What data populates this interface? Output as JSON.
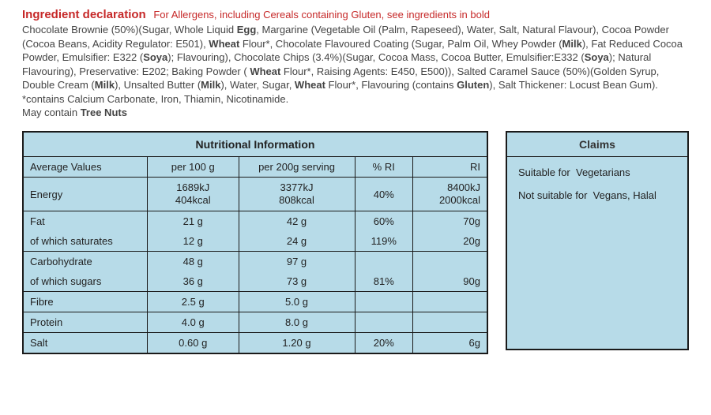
{
  "ingredient": {
    "title": "Ingredient declaration",
    "allergen_note": "For Allergens, including Cereals containing Gluten, see ingredients in bold",
    "body_html": "Chocolate Brownie (50%)(Sugar, Whole Liquid <b>Egg</b>, Margarine (Vegetable Oil (Palm, Rapeseed), Water, Salt, Natural Flavour), Cocoa Powder (Cocoa Beans, Acidity Regulator: E501), <b>Wheat</b> Flour*, Chocolate Flavoured Coating (Sugar, Palm Oil, Whey Powder (<b>Milk</b>), Fat Reduced Cocoa Powder, Emulsifier: E322 (<b>Soya</b>); Flavouring), Chocolate Chips (3.4%)(Sugar, Cocoa Mass, Cocoa Butter, Emulsifier:E332 (<b>Soya</b>); Natural Flavouring), Preservative: E202; Baking Powder ( <b>Wheat</b> Flour*, Raising Agents: E450, E500)), Salted Caramel Sauce (50%)(Golden Syrup, Double Cream (<b>Milk</b>), Unsalted Butter (<b>Milk</b>), Water, Sugar, <b>Wheat</b> Flour*, Flavouring (contains <b>Gluten</b>), Salt Thickener: Locust Bean Gum). *contains Calcium Carbonate, Iron, Thiamin, Nicotinamide.<br>May contain <b>Tree Nuts</b>"
  },
  "nutrition": {
    "title": "Nutritional Information",
    "headers": {
      "avg": "Average Values",
      "per100": "per 100 g",
      "per200": "per 200g serving",
      "pctri": "% RI",
      "ri": "RI"
    },
    "rows": {
      "energy": {
        "label": "Energy",
        "per100_l1": "1689kJ",
        "per100_l2": "404kcal",
        "per200_l1": "3377kJ",
        "per200_l2": "808kcal",
        "pctri": "40%",
        "ri_l1": "8400kJ",
        "ri_l2": "2000kcal"
      },
      "fat": {
        "label": "Fat",
        "per100": "21 g",
        "per200": "42 g",
        "pctri": "60%",
        "ri": "70g"
      },
      "saturates": {
        "label": "of which saturates",
        "per100": "12 g",
        "per200": "24 g",
        "pctri": "119%",
        "ri": "20g"
      },
      "carb": {
        "label": "Carbohydrate",
        "per100": "48 g",
        "per200": "97 g",
        "pctri": "",
        "ri": ""
      },
      "sugars": {
        "label": "of which sugars",
        "per100": "36 g",
        "per200": "73 g",
        "pctri": "81%",
        "ri": "90g"
      },
      "fibre": {
        "label": "Fibre",
        "per100": "2.5 g",
        "per200": "5.0 g",
        "pctri": "",
        "ri": ""
      },
      "protein": {
        "label": "Protein",
        "per100": "4.0 g",
        "per200": "8.0 g",
        "pctri": "",
        "ri": ""
      },
      "salt": {
        "label": "Salt",
        "per100": "0.60 g",
        "per200": "1.20 g",
        "pctri": "20%",
        "ri": "6g"
      }
    }
  },
  "claims": {
    "title": "Claims",
    "suitable_label": "Suitable for",
    "suitable_value": "Vegetarians",
    "notsuitable_label": "Not suitable for",
    "notsuitable_value": "Vegans, Halal"
  },
  "colors": {
    "panel_bg": "#b7dbe8",
    "border": "#1a1a1a",
    "heading": "#c62828"
  }
}
